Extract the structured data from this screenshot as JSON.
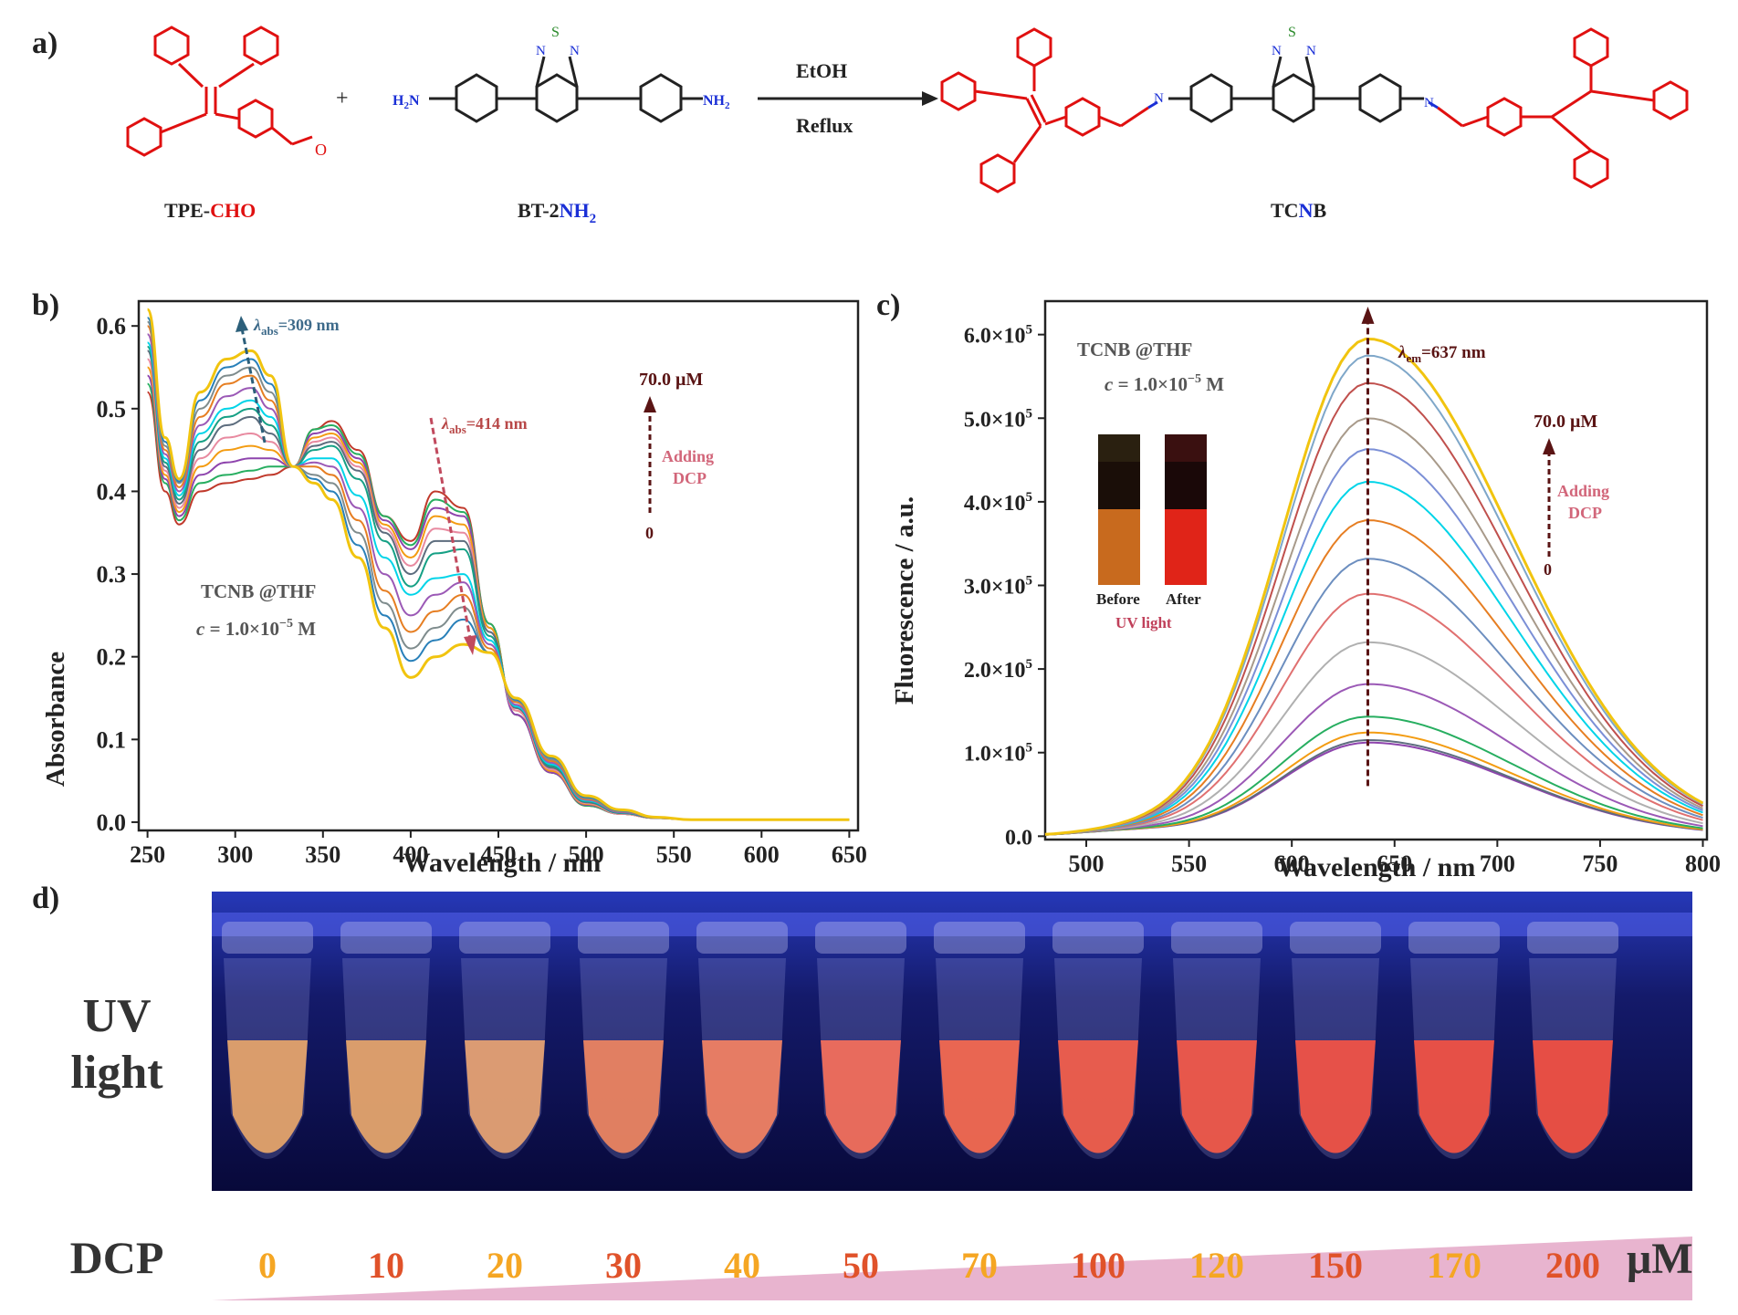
{
  "figure": {
    "panel_labels": {
      "a": "a)",
      "b": "b)",
      "c": "c)",
      "d": "d)"
    },
    "colors": {
      "red_struct": "#e01010",
      "dark": "#222222",
      "blue_n": "#1a2fd6",
      "green_s": "#2a8a2a"
    }
  },
  "scheme": {
    "reactant1": {
      "prefix": "TPE-",
      "suffix": "CHO",
      "aldehyde_o": "O"
    },
    "plus": "+",
    "reactant2": {
      "prefix": "BT-2",
      "suffix": "NH",
      "subscript": "2",
      "left_amine": "H",
      "left_amine_sub": "2",
      "left_amine_n": "N",
      "right_amine": "NH",
      "right_amine_sub": "2",
      "btd_n1": "N",
      "btd_s": "S",
      "btd_n2": "N"
    },
    "condition_top": "EtOH",
    "condition_bottom": "Reflux",
    "product": {
      "prefix": "TC",
      "mid": "N",
      "suffix": "B",
      "imine_n": "N",
      "btd_n1": "N",
      "btd_s": "S",
      "btd_n2": "N"
    }
  },
  "panel_b": {
    "peak1": {
      "lambda": "λ",
      "sub": "abs",
      "value": "=309 nm"
    },
    "peak2": {
      "lambda": "λ",
      "sub": "abs",
      "value": "=414 nm"
    },
    "arrow_top": "70.0 μM",
    "arrow_label1": "Adding",
    "arrow_label2": "DCP",
    "arrow_bottom": "0",
    "sample": "TCNB @THF",
    "conc": {
      "c": "c",
      "eq": " = 1.0×10",
      "exp": "−5",
      "unit": " M"
    }
  },
  "panel_c": {
    "sample": "TCNB @THF",
    "conc": {
      "c": "c",
      "eq": " = 1.0×10",
      "exp": "−5",
      "unit": " M"
    },
    "peak": {
      "lambda": "λ",
      "sub": "em",
      "value": "=637 nm"
    },
    "arrow_top": "70.0 μM",
    "arrow_label1": "Adding",
    "arrow_label2": "DCP",
    "arrow_bottom": "0",
    "inset_before": "Before",
    "inset_after": "After",
    "inset_caption": "UV light"
  },
  "panel_d": {
    "row_label1": "UV",
    "row_label2": "light",
    "dcp_label": "DCP",
    "unit": "μM",
    "concentrations": [
      "0",
      "10",
      "20",
      "30",
      "40",
      "50",
      "70",
      "100",
      "120",
      "150",
      "170",
      "200"
    ],
    "conc_colors": [
      "#f5a623",
      "#e0522a",
      "#f5a623",
      "#e0522a",
      "#f5a623",
      "#e0522a",
      "#f5a623",
      "#e0522a",
      "#f5a623",
      "#e0522a",
      "#f5a623",
      "#e0522a"
    ],
    "wedge_color": "#e8b4cf",
    "tube_colors": [
      "#e8a66a",
      "#e8a66a",
      "#e9a472",
      "#f08560",
      "#f58262",
      "#f7705a",
      "#f86a4e",
      "#f6604a",
      "#f65a48",
      "#f55444",
      "#f55242",
      "#f55040"
    ]
  },
  "chart_data": [
    {
      "type": "line",
      "xlabel": "Wavelength / nm",
      "ylabel": "Absorbance",
      "xlim": [
        245,
        655
      ],
      "ylim": [
        -0.01,
        0.63
      ],
      "xticks": [
        250,
        300,
        350,
        400,
        450,
        500,
        550,
        600,
        650
      ],
      "yticks": [
        0.0,
        0.1,
        0.2,
        0.3,
        0.4,
        0.5,
        0.6
      ],
      "ytick_labels": [
        "0.0",
        "0.1",
        "0.2",
        "0.3",
        "0.4",
        "0.5",
        "0.6"
      ],
      "x": [
        250,
        260,
        268,
        280,
        295,
        309,
        320,
        333,
        345,
        355,
        370,
        385,
        400,
        414,
        430,
        445,
        460,
        480,
        500,
        520,
        540,
        560,
        600,
        650
      ],
      "series": [
        {
          "color": "#c0392b",
          "values": [
            0.52,
            0.4,
            0.36,
            0.4,
            0.41,
            0.415,
            0.42,
            0.43,
            0.475,
            0.485,
            0.45,
            0.37,
            0.34,
            0.4,
            0.38,
            0.24,
            0.13,
            0.06,
            0.02,
            0.01,
            0.005,
            0.003,
            0.003,
            0.003
          ]
        },
        {
          "color": "#27ae60",
          "values": [
            0.53,
            0.41,
            0.365,
            0.41,
            0.42,
            0.425,
            0.43,
            0.43,
            0.475,
            0.48,
            0.445,
            0.37,
            0.335,
            0.39,
            0.375,
            0.24,
            0.13,
            0.06,
            0.02,
            0.01,
            0.005,
            0.003,
            0.003,
            0.003
          ]
        },
        {
          "color": "#8e44ad",
          "values": [
            0.54,
            0.415,
            0.37,
            0.42,
            0.435,
            0.44,
            0.44,
            0.43,
            0.47,
            0.475,
            0.44,
            0.365,
            0.33,
            0.38,
            0.37,
            0.235,
            0.13,
            0.06,
            0.021,
            0.01,
            0.005,
            0.003,
            0.003,
            0.003
          ]
        },
        {
          "color": "#f39c12",
          "values": [
            0.55,
            0.42,
            0.375,
            0.43,
            0.45,
            0.455,
            0.45,
            0.43,
            0.465,
            0.47,
            0.435,
            0.36,
            0.32,
            0.37,
            0.36,
            0.235,
            0.135,
            0.062,
            0.022,
            0.01,
            0.005,
            0.003,
            0.003,
            0.003
          ]
        },
        {
          "color": "#e88aa0",
          "values": [
            0.56,
            0.425,
            0.38,
            0.44,
            0.465,
            0.47,
            0.46,
            0.43,
            0.46,
            0.465,
            0.43,
            0.355,
            0.31,
            0.355,
            0.35,
            0.23,
            0.135,
            0.064,
            0.023,
            0.01,
            0.005,
            0.003,
            0.003,
            0.003
          ]
        },
        {
          "color": "#5d6d7e",
          "values": [
            0.57,
            0.43,
            0.385,
            0.45,
            0.48,
            0.49,
            0.47,
            0.43,
            0.455,
            0.46,
            0.425,
            0.35,
            0.3,
            0.34,
            0.34,
            0.23,
            0.138,
            0.066,
            0.024,
            0.011,
            0.005,
            0.003,
            0.003,
            0.003
          ]
        },
        {
          "color": "#16a085",
          "values": [
            0.575,
            0.435,
            0.39,
            0.46,
            0.49,
            0.5,
            0.48,
            0.43,
            0.45,
            0.455,
            0.415,
            0.34,
            0.285,
            0.325,
            0.33,
            0.225,
            0.14,
            0.068,
            0.025,
            0.011,
            0.006,
            0.003,
            0.003,
            0.003
          ]
        },
        {
          "color": "#00d4e8",
          "values": [
            0.58,
            0.44,
            0.395,
            0.47,
            0.5,
            0.51,
            0.49,
            0.43,
            0.44,
            0.44,
            0.395,
            0.32,
            0.275,
            0.295,
            0.3,
            0.22,
            0.14,
            0.07,
            0.026,
            0.012,
            0.006,
            0.003,
            0.003,
            0.003
          ]
        },
        {
          "color": "#9b59b6",
          "values": [
            0.59,
            0.445,
            0.4,
            0.48,
            0.515,
            0.525,
            0.5,
            0.43,
            0.435,
            0.43,
            0.38,
            0.3,
            0.25,
            0.275,
            0.29,
            0.215,
            0.142,
            0.072,
            0.027,
            0.012,
            0.006,
            0.003,
            0.003,
            0.003
          ]
        },
        {
          "color": "#e67e22",
          "values": [
            0.6,
            0.45,
            0.405,
            0.49,
            0.53,
            0.54,
            0.51,
            0.43,
            0.43,
            0.42,
            0.365,
            0.28,
            0.23,
            0.255,
            0.275,
            0.21,
            0.145,
            0.074,
            0.028,
            0.013,
            0.006,
            0.003,
            0.003,
            0.003
          ]
        },
        {
          "color": "#7f8c8d",
          "values": [
            0.605,
            0.455,
            0.41,
            0.5,
            0.54,
            0.55,
            0.52,
            0.43,
            0.42,
            0.41,
            0.35,
            0.265,
            0.21,
            0.235,
            0.26,
            0.205,
            0.147,
            0.076,
            0.029,
            0.013,
            0.006,
            0.003,
            0.003,
            0.003
          ]
        },
        {
          "color": "#2980b9",
          "values": [
            0.61,
            0.46,
            0.412,
            0.51,
            0.55,
            0.56,
            0.53,
            0.43,
            0.415,
            0.4,
            0.335,
            0.25,
            0.195,
            0.22,
            0.245,
            0.205,
            0.148,
            0.078,
            0.03,
            0.014,
            0.006,
            0.003,
            0.003,
            0.003
          ]
        },
        {
          "color": "#f1c40f",
          "values": [
            0.62,
            0.465,
            0.415,
            0.52,
            0.56,
            0.57,
            0.54,
            0.43,
            0.41,
            0.39,
            0.32,
            0.235,
            0.175,
            0.2,
            0.215,
            0.205,
            0.15,
            0.08,
            0.032,
            0.015,
            0.006,
            0.003,
            0.003,
            0.003
          ]
        }
      ]
    },
    {
      "type": "line",
      "xlabel": "Wavelength / nm",
      "ylabel": "Fluorescence / a.u.",
      "xlim": [
        480,
        802
      ],
      "ylim": [
        -4000,
        640000
      ],
      "xticks": [
        500,
        550,
        600,
        650,
        700,
        750,
        800
      ],
      "yticks": [
        0,
        100000,
        200000,
        300000,
        400000,
        500000,
        600000
      ],
      "ytick_labels": [
        {
          "mant": "0.0",
          "exp": ""
        },
        {
          "mant": "1.0×10",
          "exp": "5"
        },
        {
          "mant": "2.0×10",
          "exp": "5"
        },
        {
          "mant": "3.0×10",
          "exp": "5"
        },
        {
          "mant": "4.0×10",
          "exp": "5"
        },
        {
          "mant": "5.0×10",
          "exp": "5"
        },
        {
          "mant": "6.0×10",
          "exp": "5"
        }
      ],
      "series_peaks": [
        112000,
        115000,
        124000,
        143000,
        182000,
        232000,
        290000,
        332000,
        378000,
        424000,
        463000,
        500000,
        542000,
        575000,
        595000
      ],
      "series_colors": [
        "#8e44ad",
        "#5d6d7e",
        "#f39c12",
        "#27ae60",
        "#9b59b6",
        "#b0b0b0",
        "#e07070",
        "#6c8ebf",
        "#e67e22",
        "#00d4e8",
        "#7b8fd6",
        "#a89a8a",
        "#c0504d",
        "#7fa7c9",
        "#f1c40f"
      ],
      "peak_x": 637
    }
  ]
}
